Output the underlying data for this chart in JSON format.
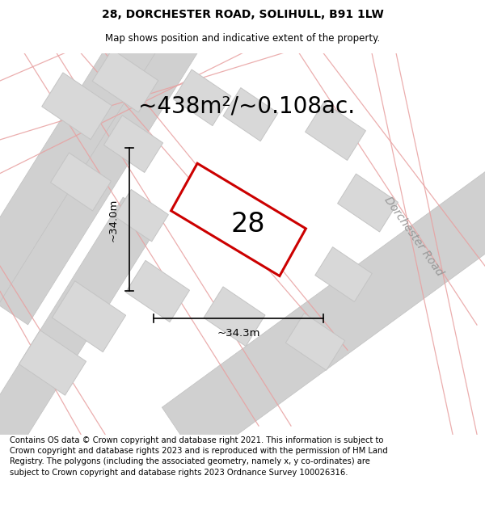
{
  "title": "28, DORCHESTER ROAD, SOLIHULL, B91 1LW",
  "subtitle": "Map shows position and indicative extent of the property.",
  "area_label": "~438m²/~0.108ac.",
  "number_label": "28",
  "width_label": "~34.3m",
  "height_label": "~34.0m",
  "road_label": "Dorchester Road",
  "footer_text": "Contains OS data © Crown copyright and database right 2021. This information is subject to Crown copyright and database rights 2023 and is reproduced with the permission of HM Land Registry. The polygons (including the associated geometry, namely x, y co-ordinates) are subject to Crown copyright and database rights 2023 Ordnance Survey 100026316.",
  "map_bg": "#ebebeb",
  "title_fontsize": 10,
  "subtitle_fontsize": 8.5,
  "area_fontsize": 20,
  "number_fontsize": 24,
  "label_fontsize": 9.5,
  "road_fontsize": 10,
  "footer_fontsize": 7.2,
  "red_color": "#cc0000",
  "pink_color": "#e8a0a0",
  "dark_gray": "#999999",
  "building_fill": "#d8d8d8",
  "building_stroke": "#c4c4c4",
  "road_fill": "#d0d0d0",
  "road_stroke": "#c0c0c0"
}
